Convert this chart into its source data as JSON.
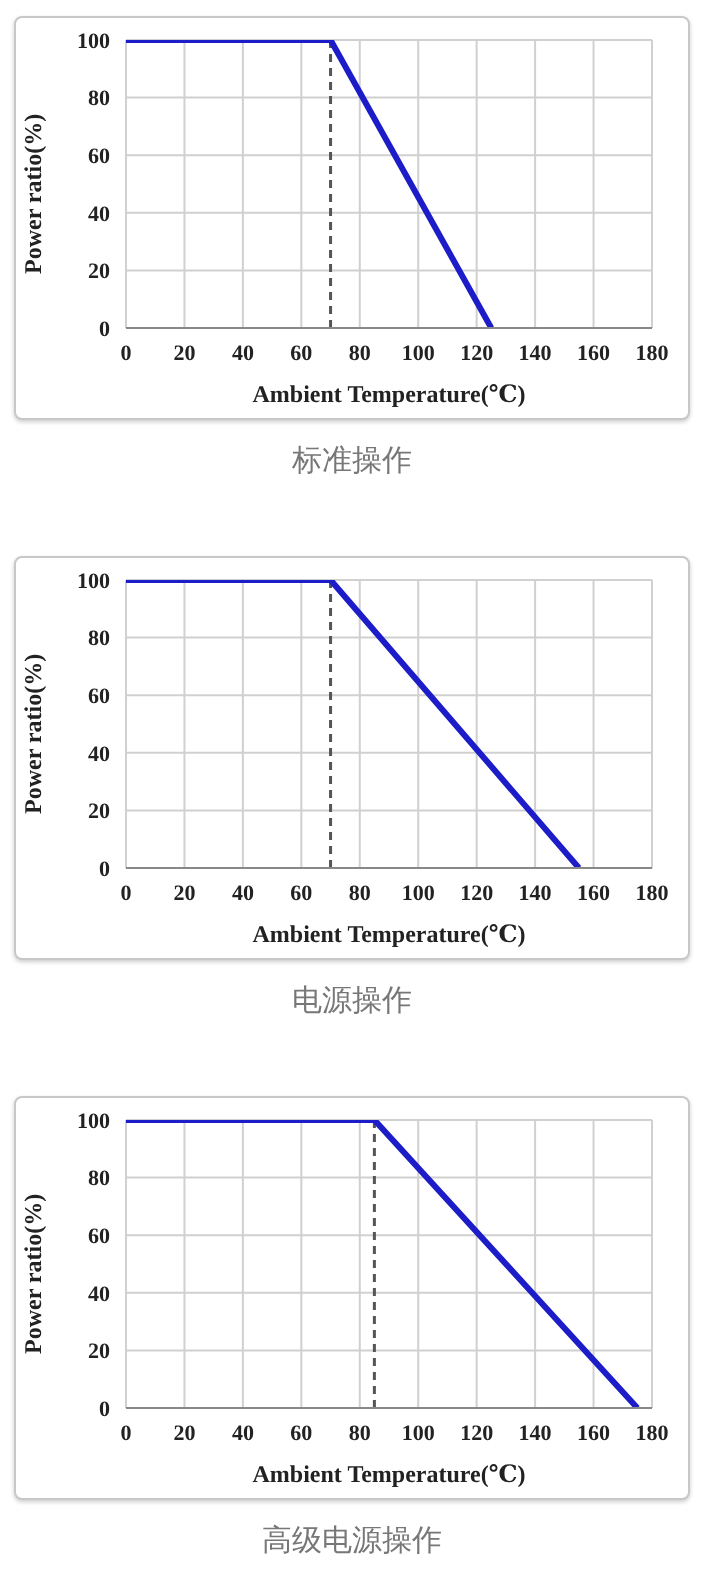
{
  "chart_data": [
    {
      "type": "line",
      "title": "标准操作",
      "xlabel": "Ambient Temperature(℃)",
      "ylabel": "Power ratio(%)",
      "x": [
        0,
        70,
        125
      ],
      "values": [
        100,
        100,
        0
      ],
      "color": "#1c1cc8",
      "xlim": [
        0,
        180
      ],
      "xticks": [
        0,
        20,
        40,
        60,
        80,
        100,
        120,
        140,
        160,
        180
      ],
      "ylim": [
        0,
        100
      ],
      "yticks": [
        0,
        20,
        40,
        60,
        80,
        100
      ],
      "grid": true,
      "line_style": "solid",
      "ref_lines": [
        {
          "axis": "x",
          "value": 70,
          "color": "#555555",
          "line_style": "dashed"
        }
      ]
    },
    {
      "type": "line",
      "title": "电源操作",
      "xlabel": "Ambient Temperature(℃)",
      "ylabel": "Power ratio(%)",
      "x": [
        0,
        70,
        155
      ],
      "values": [
        100,
        100,
        0
      ],
      "color": "#1c1cc8",
      "xlim": [
        0,
        180
      ],
      "xticks": [
        0,
        20,
        40,
        60,
        80,
        100,
        120,
        140,
        160,
        180
      ],
      "ylim": [
        0,
        100
      ],
      "yticks": [
        0,
        20,
        40,
        60,
        80,
        100
      ],
      "grid": true,
      "line_style": "solid",
      "ref_lines": [
        {
          "axis": "x",
          "value": 70,
          "color": "#555555",
          "line_style": "dashed"
        }
      ]
    },
    {
      "type": "line",
      "title": "高级电源操作",
      "xlabel": "Ambient Temperature(℃)",
      "ylabel": "Power ratio(%)",
      "x": [
        0,
        85,
        175
      ],
      "values": [
        100,
        100,
        0
      ],
      "color": "#1c1cc8",
      "xlim": [
        0,
        180
      ],
      "xticks": [
        0,
        20,
        40,
        60,
        80,
        100,
        120,
        140,
        160,
        180
      ],
      "ylim": [
        0,
        100
      ],
      "yticks": [
        0,
        20,
        40,
        60,
        80,
        100
      ],
      "grid": true,
      "line_style": "solid",
      "ref_lines": [
        {
          "axis": "x",
          "value": 85,
          "color": "#555555",
          "line_style": "dashed"
        }
      ]
    }
  ]
}
